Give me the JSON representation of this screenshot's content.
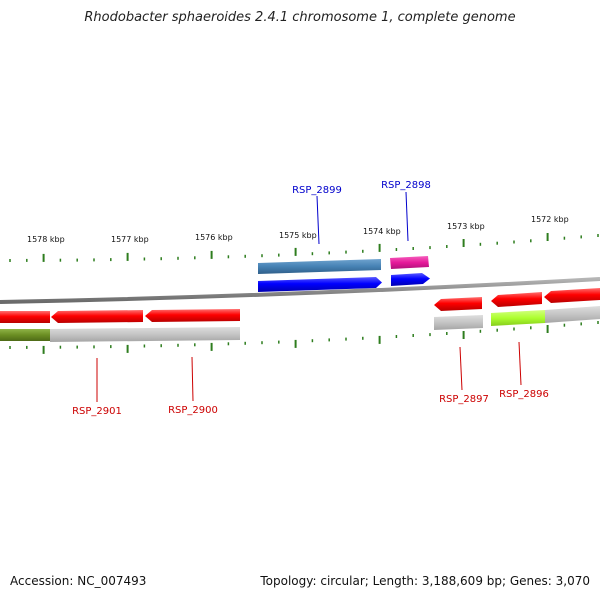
{
  "title": "Rhodobacter sphaeroides 2.4.1 chromosome 1, complete genome",
  "footer": {
    "accession": "Accession: NC_007493",
    "summary": "Topology: circular; Length: 3,188,609 bp; Genes: 3,070"
  },
  "colors": {
    "backbone": "#8c8c8c",
    "tick": "#2e7d1e",
    "label_forward": "#0000cc",
    "label_reverse": "#cc0000",
    "gene_blue": "#0000ff",
    "gene_red": "#ff0000",
    "feature_steel": "#4682b4",
    "feature_magenta": "#e6199a",
    "feature_olive": "#6b8e23",
    "feature_green": "#adff2f",
    "feature_grey": "#bdbdbd"
  },
  "scale": {
    "unit": "kbp",
    "labels": [
      "1578 kbp",
      "1577 kbp",
      "1576 kbp",
      "1575 kbp",
      "1574 kbp",
      "1573 kbp",
      "1572 kbp"
    ]
  },
  "genes": [
    {
      "label": "RSP_2899",
      "strand": "+"
    },
    {
      "label": "RSP_2898",
      "strand": "+"
    },
    {
      "label": "RSP_2901",
      "strand": "-"
    },
    {
      "label": "RSP_2900",
      "strand": "-"
    },
    {
      "label": "RSP_2897",
      "strand": "-"
    },
    {
      "label": "RSP_2896",
      "strand": "-"
    }
  ]
}
